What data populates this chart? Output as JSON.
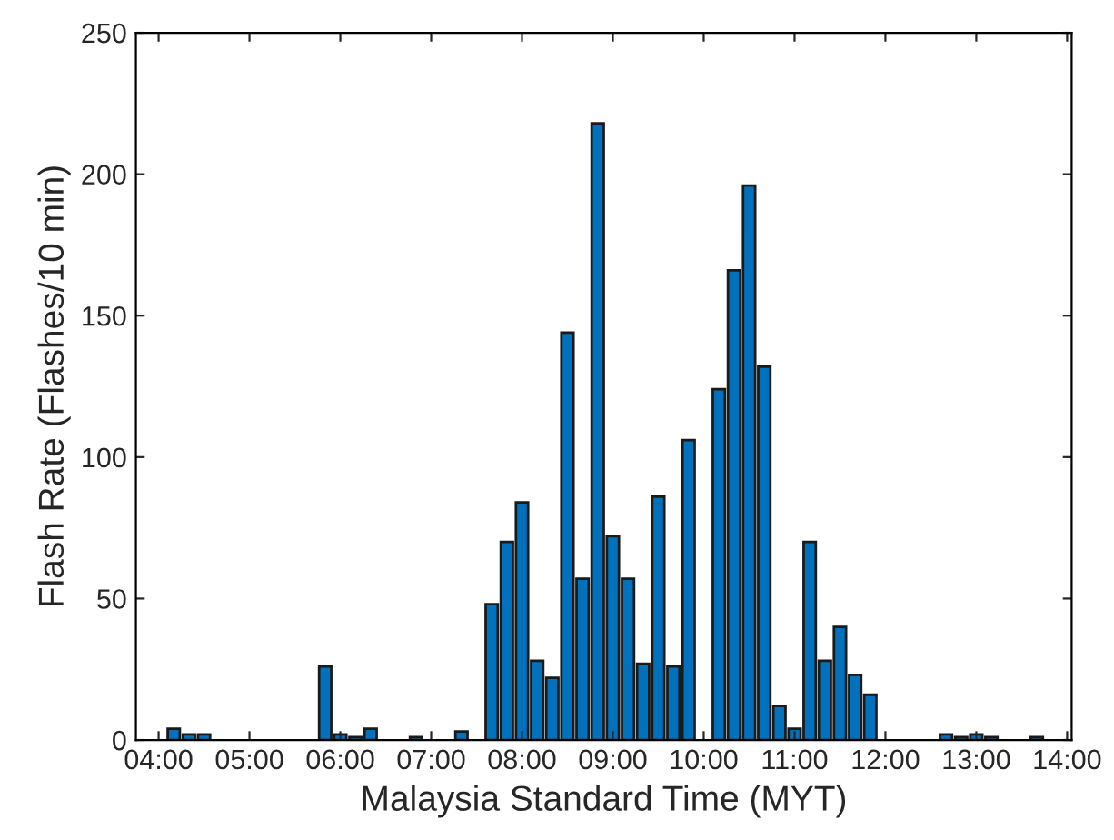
{
  "chart_data": {
    "type": "bar",
    "xlabel": "Malaysia Standard Time (MYT)",
    "ylabel": "Flash Rate (Flashes/10 min)",
    "x": [
      4.1667,
      4.3333,
      4.5,
      5.8333,
      6.0,
      6.1667,
      6.3333,
      6.8333,
      7.3333,
      7.6667,
      7.8333,
      8.0,
      8.1667,
      8.3333,
      8.5,
      8.6667,
      8.8333,
      9.0,
      9.1667,
      9.3333,
      9.5,
      9.6667,
      9.8333,
      10.1667,
      10.3333,
      10.5,
      10.6667,
      10.8333,
      11.0,
      11.1667,
      11.3333,
      11.5,
      11.6667,
      11.8333,
      12.6667,
      12.8333,
      13.0,
      13.1667,
      13.6667
    ],
    "values": [
      4,
      2,
      2,
      26,
      2,
      1,
      4,
      1,
      3,
      48,
      70,
      84,
      28,
      22,
      144,
      57,
      218,
      72,
      57,
      27,
      86,
      26,
      106,
      124,
      166,
      196,
      132,
      12,
      4,
      70,
      28,
      40,
      23,
      16,
      2,
      1,
      2,
      1,
      1
    ],
    "color": "#0072bd",
    "xlim": [
      3.75,
      14.05
    ],
    "xticks": [
      {
        "value": 4,
        "label": "04:00"
      },
      {
        "value": 5,
        "label": "05:00"
      },
      {
        "value": 6,
        "label": "06:00"
      },
      {
        "value": 7,
        "label": "07:00"
      },
      {
        "value": 8,
        "label": "08:00"
      },
      {
        "value": 9,
        "label": "09:00"
      },
      {
        "value": 10,
        "label": "10:00"
      },
      {
        "value": 11,
        "label": "11:00"
      },
      {
        "value": 12,
        "label": "12:00"
      },
      {
        "value": 13,
        "label": "13:00"
      },
      {
        "value": 14,
        "label": "14:00"
      }
    ],
    "ylim": [
      0,
      250
    ],
    "yticks": [
      0,
      50,
      100,
      150,
      200,
      250
    ]
  }
}
